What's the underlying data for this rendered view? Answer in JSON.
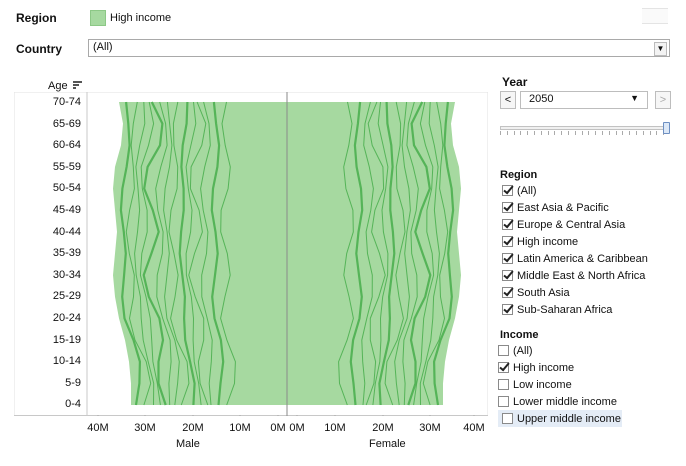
{
  "filters": {
    "region_label": "Region",
    "legend_item": "High income",
    "legend_color": "#a6d9a0",
    "country_label": "Country",
    "country_value": "(All)"
  },
  "chart": {
    "age_label": "Age",
    "age_groups": [
      "70-74",
      "65-69",
      "60-64",
      "55-59",
      "50-54",
      "45-49",
      "40-44",
      "35-39",
      "30-34",
      "25-29",
      "20-24",
      "15-19",
      "10-14",
      "5-9",
      "0-4"
    ],
    "male_ticks": [
      "40M",
      "30M",
      "20M",
      "10M",
      "0M"
    ],
    "female_ticks": [
      "0M",
      "10M",
      "20M",
      "30M",
      "40M"
    ],
    "male_label": "Male",
    "female_label": "Female",
    "fill_color": "#a6d9a0",
    "line_color": "#4caf50"
  },
  "year": {
    "label": "Year",
    "value": "2050",
    "prev": "<",
    "next": ">",
    "slider_position": 1.0
  },
  "region_filter": {
    "title": "Region",
    "items": [
      {
        "label": "(All)",
        "checked": true
      },
      {
        "label": "East Asia & Pacific",
        "checked": true
      },
      {
        "label": "Europe & Central Asia",
        "checked": true
      },
      {
        "label": "High income",
        "checked": true
      },
      {
        "label": "Latin America & Caribbean",
        "checked": true
      },
      {
        "label": "Middle East & North Africa",
        "checked": true
      },
      {
        "label": "South Asia",
        "checked": true
      },
      {
        "label": "Sub-Saharan Africa",
        "checked": true
      }
    ]
  },
  "income_filter": {
    "title": "Income",
    "items": [
      {
        "label": "(All)",
        "checked": false
      },
      {
        "label": "High income",
        "checked": true
      },
      {
        "label": "Low income",
        "checked": false
      },
      {
        "label": "Lower middle income",
        "checked": false
      },
      {
        "label": "Upper middle income",
        "checked": false,
        "highlighted": true
      }
    ]
  }
}
